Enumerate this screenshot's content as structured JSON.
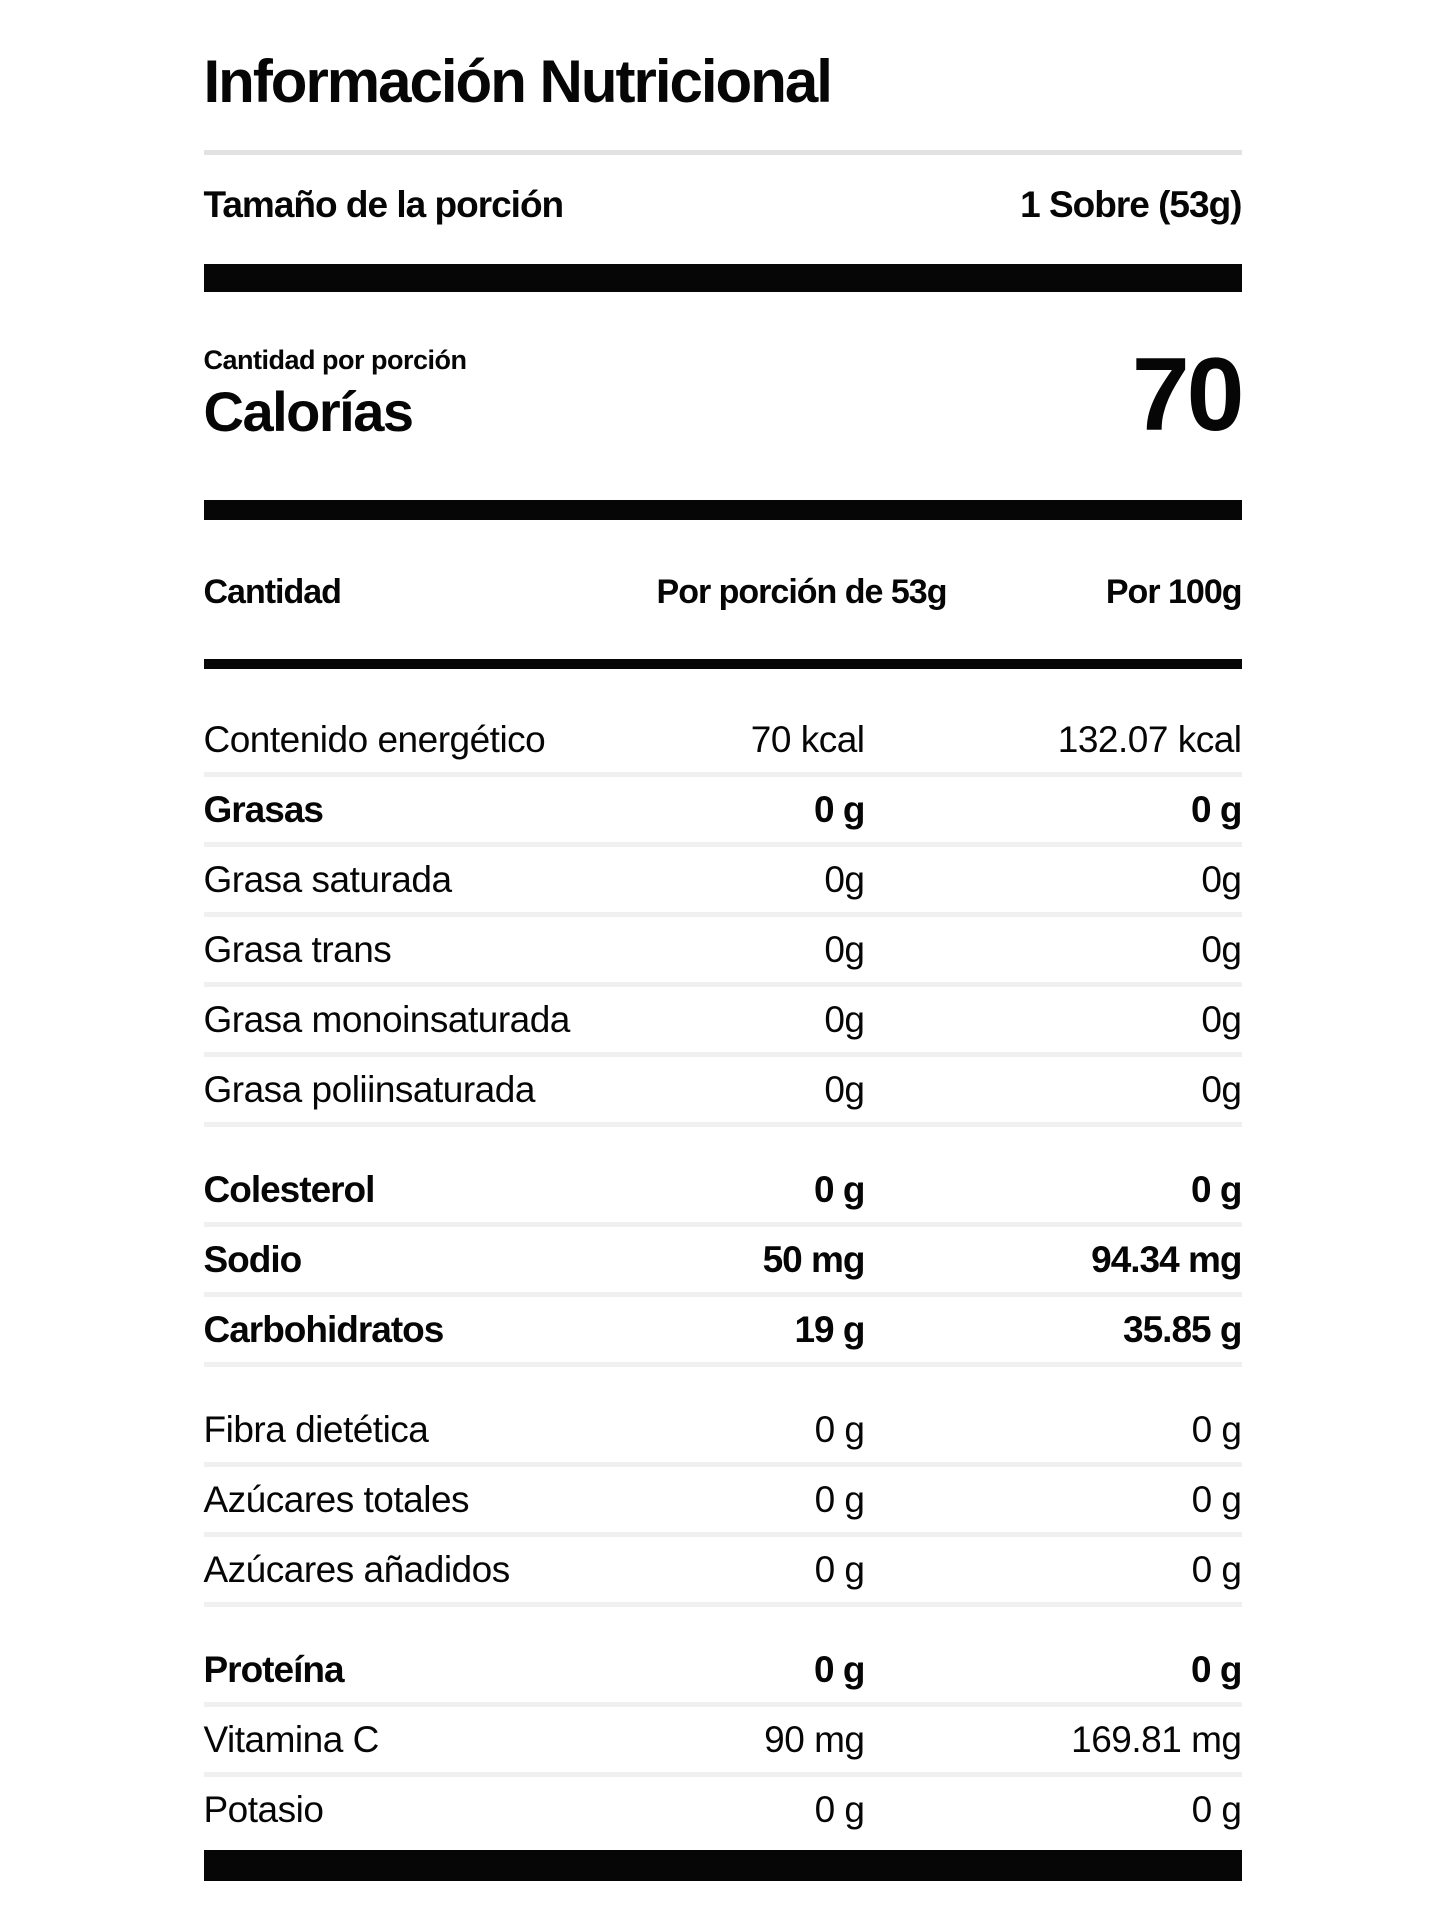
{
  "title": "Información Nutricional",
  "serving": {
    "label": "Tamaño de la porción",
    "value": "1 Sobre (53g)"
  },
  "calories": {
    "eyebrow": "Cantidad por porción",
    "label": "Calorías",
    "value": "70"
  },
  "table": {
    "headers": {
      "col1": "Cantidad",
      "col2": "Por porción de 53g",
      "col3": "Por 100g"
    },
    "rows": [
      {
        "name": "Contenido energético",
        "per_serving": "70 kcal",
        "per_100g": "132.07 kcal",
        "bold": false,
        "gap_before": false
      },
      {
        "name": "Grasas",
        "per_serving": "0 g",
        "per_100g": "0 g",
        "bold": true,
        "gap_before": false
      },
      {
        "name": "Grasa saturada",
        "per_serving": "0g",
        "per_100g": "0g",
        "bold": false,
        "gap_before": false
      },
      {
        "name": "Grasa trans",
        "per_serving": "0g",
        "per_100g": "0g",
        "bold": false,
        "gap_before": false
      },
      {
        "name": "Grasa monoinsaturada",
        "per_serving": "0g",
        "per_100g": "0g",
        "bold": false,
        "gap_before": false
      },
      {
        "name": "Grasa poliinsaturada",
        "per_serving": "0g",
        "per_100g": "0g",
        "bold": false,
        "gap_before": false
      },
      {
        "name": "Colesterol",
        "per_serving": "0 g",
        "per_100g": "0 g",
        "bold": true,
        "gap_before": true
      },
      {
        "name": "Sodio",
        "per_serving": "50 mg",
        "per_100g": "94.34 mg",
        "bold": true,
        "gap_before": false
      },
      {
        "name": "Carbohidratos",
        "per_serving": "19 g",
        "per_100g": "35.85 g",
        "bold": true,
        "gap_before": false
      },
      {
        "name": "Fibra dietética",
        "per_serving": "0 g",
        "per_100g": "0 g",
        "bold": false,
        "gap_before": true
      },
      {
        "name": "Azúcares totales",
        "per_serving": "0 g",
        "per_100g": "0 g",
        "bold": false,
        "gap_before": false
      },
      {
        "name": "Azúcares añadidos",
        "per_serving": "0 g",
        "per_100g": "0 g",
        "bold": false,
        "gap_before": false
      },
      {
        "name": "Proteína",
        "per_serving": "0 g",
        "per_100g": "0 g",
        "bold": true,
        "gap_before": true
      },
      {
        "name": "Vitamina C",
        "per_serving": "90 mg",
        "per_100g": "169.81 mg",
        "bold": false,
        "gap_before": false
      },
      {
        "name": "Potasio",
        "per_serving": "0 g",
        "per_100g": "0 g",
        "bold": false,
        "gap_before": false
      }
    ]
  },
  "colors": {
    "text": "#060606",
    "bar": "#060606",
    "title_divider": "#e2e2e2",
    "row_separator": "#f0f0f0",
    "background": "#ffffff"
  }
}
